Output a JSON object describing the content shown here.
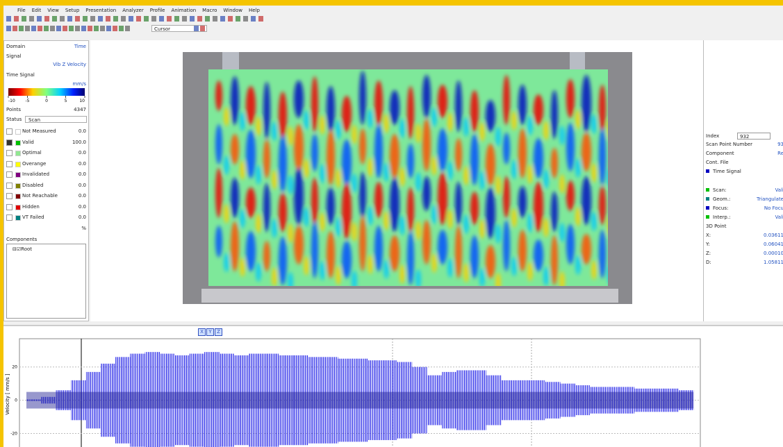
{
  "menu": [
    "File",
    "Edit",
    "View",
    "Setup",
    "Presentation",
    "Analyzer",
    "Profile",
    "Animation",
    "Macro",
    "Window",
    "Help"
  ],
  "toolbar": {
    "cursor_mode": "Cursor"
  },
  "left_panel": {
    "domain_label": "Domain",
    "domain_value": "Time",
    "signal_label": "Signal",
    "signal_value": "Vib Z Velocity",
    "display_label": "Time Signal",
    "colorbar": {
      "unit": "mm/s",
      "ticks": [
        -10,
        -5,
        0,
        5,
        10
      ]
    },
    "points_label": "Points",
    "points_value": 4347,
    "status_label": "Status",
    "status_value": "Scan",
    "statuses": [
      {
        "name": "Not Measured",
        "color": "#ffffff",
        "value": "0.0"
      },
      {
        "name": "Valid",
        "color": "#00c000",
        "value": "100.0"
      },
      {
        "name": "Optimal",
        "color": "#90e890",
        "value": "0.0"
      },
      {
        "name": "Overange",
        "color": "#ffff00",
        "value": "0.0"
      },
      {
        "name": "Invalidated",
        "color": "#800080",
        "value": "0.0"
      },
      {
        "name": "Disabled",
        "color": "#808000",
        "value": "0.0"
      },
      {
        "name": "Not Reachable",
        "color": "#800000",
        "value": "0.0"
      },
      {
        "name": "Hidden",
        "color": "#e00000",
        "value": "0.0"
      },
      {
        "name": "VT Failed",
        "color": "#008080",
        "value": "0.0"
      }
    ],
    "percent_label": "%",
    "components_label": "Components",
    "tree_root": "Root"
  },
  "right_panel": {
    "index_label": "Index",
    "index_value": "932",
    "rows": [
      {
        "label": "Scan Point Number",
        "value": "93"
      },
      {
        "label": "Component",
        "value": "Re"
      },
      {
        "label": "Cont. File",
        "value": null
      }
    ],
    "signal": {
      "name": "Time Signal",
      "color": "#0000c0"
    },
    "flags": [
      {
        "label": "Scan:",
        "value": "Vali",
        "color": "#00c000"
      },
      {
        "label": "Geom.:",
        "value": "Triangulate",
        "color": "#008080"
      },
      {
        "label": "Focus:",
        "value": "No Focu",
        "color": "#0000c0"
      },
      {
        "label": "Interp.:",
        "value": "Vali",
        "color": "#00c000"
      }
    ],
    "point_label": "3D Point",
    "coords": [
      {
        "label": "X:",
        "value": "0.03611"
      },
      {
        "label": "Y:",
        "value": "0.06041"
      },
      {
        "label": "Z:",
        "value": "0.00010"
      },
      {
        "label": "D:",
        "value": "1.05811"
      }
    ]
  },
  "time_chart": {
    "y_label": "Velocity [ mm/s ]",
    "ylim": [
      -34,
      37
    ],
    "yticks": [
      20,
      0,
      -20
    ],
    "color": "#2828e8",
    "axis_buttons": [
      "X",
      "Y",
      "Z"
    ],
    "envelope": [
      0.5,
      2,
      6,
      12,
      17,
      22,
      26,
      28,
      29,
      28,
      27,
      28,
      29,
      28,
      27,
      28,
      28,
      27,
      27,
      26,
      26,
      25,
      25,
      24,
      24,
      23,
      20,
      15,
      17,
      18,
      18,
      15,
      12,
      12,
      12,
      11,
      10,
      9,
      8,
      8,
      8,
      7,
      7,
      7,
      6
    ]
  }
}
